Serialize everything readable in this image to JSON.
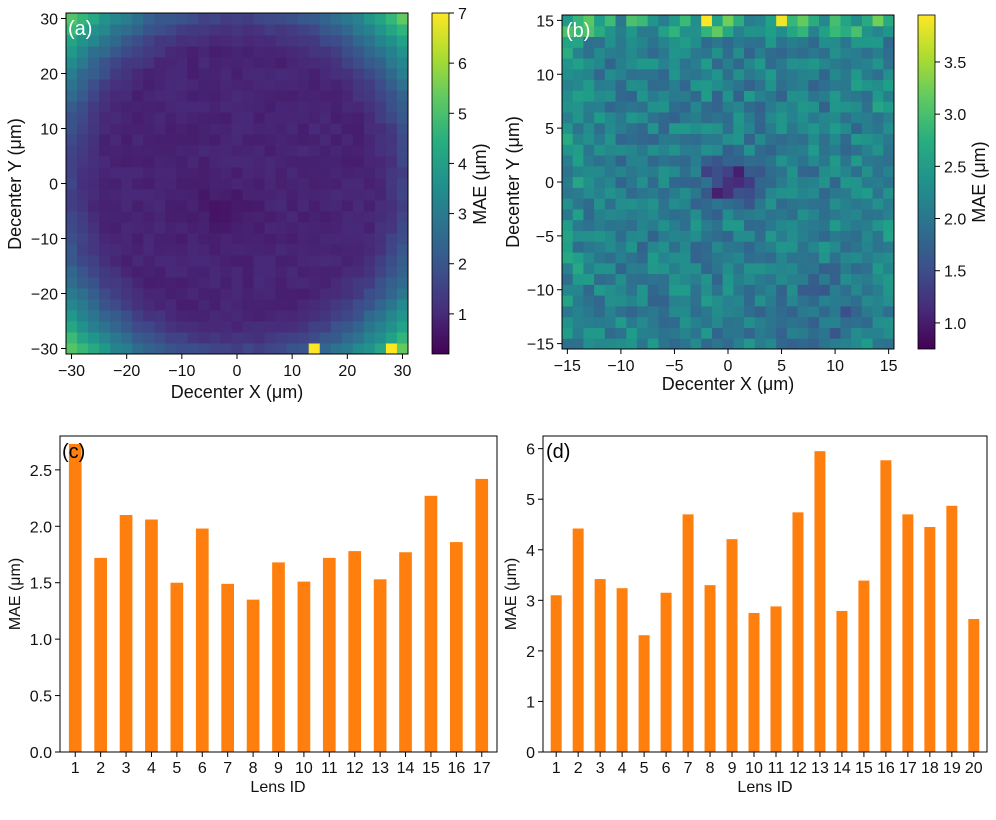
{
  "colors": {
    "bar": "#ff7f0e",
    "axis": "#000000",
    "panel_label_heatmap": "#ffffff",
    "panel_label_bar": "#000000",
    "colormap": "viridis"
  },
  "chart_data": [
    {
      "type": "heatmap",
      "panel_label": "(a)",
      "xlabel": "Decenter X (μm)",
      "ylabel": "Decenter Y (μm)",
      "colorbar_label": "MAE (μm)",
      "xlim": [
        -31,
        31
      ],
      "ylim": [
        -31,
        31
      ],
      "xticks": [
        -30,
        -20,
        -10,
        0,
        10,
        20,
        30
      ],
      "yticks": [
        -30,
        -20,
        -10,
        0,
        10,
        20,
        30
      ],
      "grid_size": [
        31,
        31
      ],
      "cell_step": 2,
      "cell_origin": -30,
      "color_range": [
        0.2,
        7
      ],
      "colorbar_ticks": [
        1,
        2,
        3,
        4,
        5,
        6,
        7
      ],
      "peak_cells": [
        {
          "x": 14,
          "y": -30,
          "value": 7
        },
        {
          "x": 28,
          "y": -30,
          "value": 7
        }
      ],
      "pattern": "ring: MAE ~0.5-1.2 μm inside radius ~26 μm, rising toward ~4-5 μm at the corners"
    },
    {
      "type": "heatmap",
      "panel_label": "(b)",
      "xlabel": "Decenter X (μm)",
      "ylabel": "Decenter Y (μm)",
      "colorbar_label": "MAE (μm)",
      "xlim": [
        -15.5,
        15.5
      ],
      "ylim": [
        -15.5,
        15.5
      ],
      "xticks": [
        -15,
        -10,
        -5,
        0,
        5,
        10,
        15
      ],
      "yticks": [
        -15,
        -10,
        -5,
        0,
        5,
        10,
        15
      ],
      "grid_size": [
        31,
        31
      ],
      "cell_step": 1,
      "cell_origin": -15,
      "color_range": [
        0.75,
        3.95
      ],
      "colorbar_ticks": [
        1.0,
        1.5,
        2.0,
        2.5,
        3.0,
        3.5
      ],
      "peak_cells": [
        {
          "x": -2,
          "y": 15,
          "value": 3.95
        },
        {
          "x": 5,
          "y": 15,
          "value": 3.9
        }
      ],
      "pattern": "noisy ~1.8-2.6 μm with a low spot (~0.8 μm) at the center, higher values along the top row"
    },
    {
      "type": "bar",
      "panel_label": "(c)",
      "xlabel": "Lens ID",
      "ylabel": "MAE (μm)",
      "categories": [
        "1",
        "2",
        "3",
        "4",
        "5",
        "6",
        "7",
        "8",
        "9",
        "10",
        "11",
        "12",
        "13",
        "14",
        "15",
        "16",
        "17"
      ],
      "values": [
        2.73,
        1.72,
        2.1,
        2.06,
        1.5,
        1.98,
        1.49,
        1.35,
        1.68,
        1.51,
        1.72,
        1.78,
        1.53,
        1.77,
        2.27,
        1.86,
        2.42
      ],
      "ylim": [
        0,
        2.8
      ],
      "yticks": [
        0.0,
        0.5,
        1.0,
        1.5,
        2.0,
        2.5
      ],
      "ytick_labels": [
        "0.0",
        "0.5",
        "1.0",
        "1.5",
        "2.0",
        "2.5"
      ]
    },
    {
      "type": "bar",
      "panel_label": "(d)",
      "xlabel": "Lens ID",
      "ylabel": "MAE (μm)",
      "categories": [
        "1",
        "2",
        "3",
        "4",
        "5",
        "6",
        "7",
        "8",
        "9",
        "10",
        "11",
        "12",
        "13",
        "14",
        "15",
        "16",
        "17",
        "18",
        "19",
        "20"
      ],
      "values": [
        3.1,
        4.42,
        3.42,
        3.24,
        2.31,
        3.15,
        4.7,
        3.3,
        4.21,
        2.75,
        2.88,
        4.74,
        5.95,
        2.79,
        3.39,
        5.77,
        4.7,
        4.45,
        4.87,
        2.63
      ],
      "ylim": [
        0,
        6.25
      ],
      "yticks": [
        0,
        1,
        2,
        3,
        4,
        5,
        6
      ],
      "ytick_labels": [
        "0",
        "1",
        "2",
        "3",
        "4",
        "5",
        "6"
      ]
    }
  ]
}
